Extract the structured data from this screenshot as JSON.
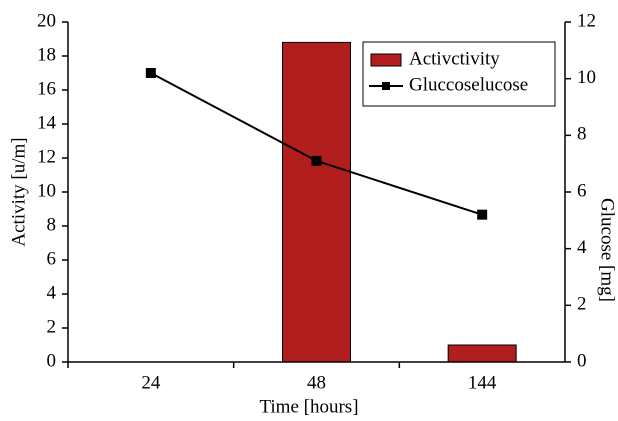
{
  "chart_data": {
    "type": "bar",
    "x_label": "Time [hours]",
    "y_label": "Activity [u/m]",
    "y2_label": "Glucose [mg]",
    "categories": [
      "24",
      "48",
      "144"
    ],
    "series": [
      {
        "name": "Activctivity",
        "type": "bar",
        "color": "#b21e1e",
        "values": [
          0,
          18.8,
          1
        ]
      },
      {
        "name": "Gluccoselucose",
        "type": "line",
        "axis": "y2",
        "color": "#000000",
        "values": [
          10.2,
          7.1,
          5.2
        ]
      }
    ],
    "ylim": [
      0,
      20
    ],
    "yticks": [
      0,
      2,
      4,
      6,
      8,
      10,
      12,
      14,
      16,
      18,
      20
    ],
    "y2lim": [
      0,
      12
    ],
    "y2ticks": [
      0,
      2,
      4,
      6,
      8,
      10,
      12
    ],
    "legend": "upper right",
    "grid": false
  }
}
